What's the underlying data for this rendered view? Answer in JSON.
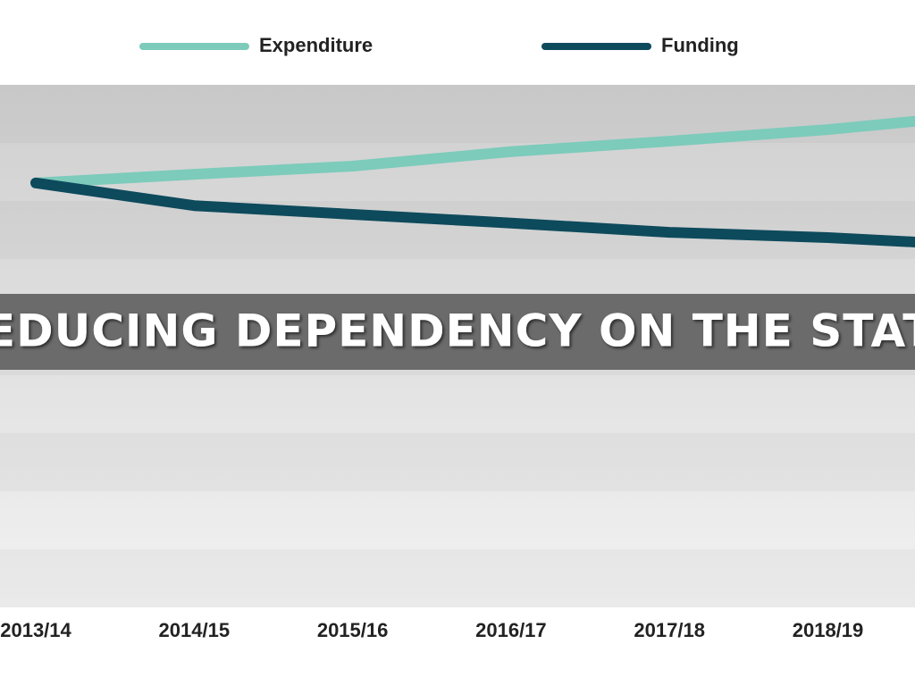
{
  "chart_data": {
    "type": "line",
    "title": "REDUCING DEPENDENCY ON THE STATE",
    "categories": [
      "2013/14",
      "2014/15",
      "2015/16",
      "2016/17",
      "2017/18",
      "2018/19",
      null
    ],
    "series": [
      {
        "name": "Expenditure",
        "color": "#7ccbbb",
        "values": [
          7.31,
          7.46,
          7.6,
          7.85,
          8.03,
          8.23,
          8.49
        ]
      },
      {
        "name": "Funding",
        "color": "#0d4a5c",
        "values": [
          7.31,
          6.92,
          6.77,
          6.62,
          6.46,
          6.37,
          6.23
        ]
      }
    ],
    "ylim": [
      0,
      9
    ]
  }
}
